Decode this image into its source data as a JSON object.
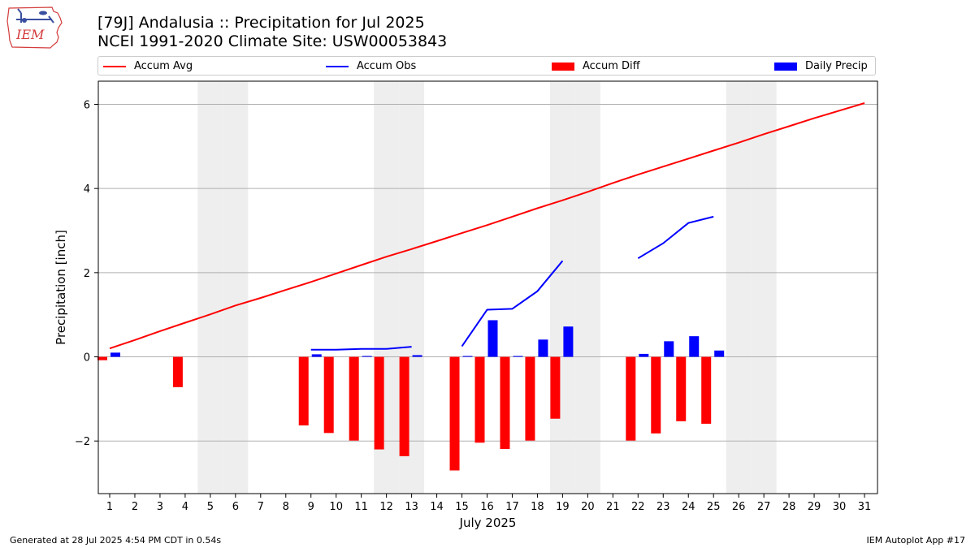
{
  "header": {
    "title_line1": "[79J] Andalusia :: Precipitation for Jul 2025",
    "title_line2": "NCEI 1991-2020 Climate Site: USW00053843",
    "logo_text": "IEM"
  },
  "footer": {
    "left": "Generated at 28 Jul 2025 4:54 PM CDT in 0.54s",
    "right": "IEM Autoplot App #17"
  },
  "colors": {
    "avg": "#ff0000",
    "obs": "#0000ff",
    "diff": "#ff0000",
    "daily": "#0000ff",
    "weekend": "#eeeeee",
    "grid": "#b0b0b0"
  },
  "chart_data": {
    "type": "bar",
    "xlabel": "July 2025",
    "ylabel": "Precipitation [inch]",
    "ylim": [
      -3.25,
      6.55
    ],
    "yticks": [
      -2,
      0,
      2,
      4,
      6
    ],
    "ytick_labels": [
      "−2",
      "0",
      "2",
      "4",
      "6"
    ],
    "grid": "horizontal",
    "legend_position": "top",
    "x": [
      1,
      2,
      3,
      4,
      5,
      6,
      7,
      8,
      9,
      10,
      11,
      12,
      13,
      14,
      15,
      16,
      17,
      18,
      19,
      20,
      21,
      22,
      23,
      24,
      25,
      26,
      27,
      28,
      29,
      30,
      31
    ],
    "weekend_days": [
      5,
      6,
      12,
      13,
      19,
      20,
      26,
      27
    ],
    "series": [
      {
        "name": "Accum Avg",
        "type": "line",
        "values": [
          0.2,
          0.4,
          0.61,
          0.81,
          1.01,
          1.22,
          1.4,
          1.59,
          1.78,
          1.98,
          2.18,
          2.38,
          2.56,
          2.75,
          2.94,
          3.13,
          3.33,
          3.53,
          3.72,
          3.92,
          4.13,
          4.33,
          4.52,
          4.71,
          4.9,
          5.09,
          5.29,
          5.48,
          5.67,
          5.85,
          6.03
        ]
      },
      {
        "name": "Accum Obs",
        "type": "line",
        "values": [
          null,
          null,
          null,
          null,
          null,
          null,
          null,
          null,
          0.17,
          0.17,
          0.19,
          0.19,
          0.24,
          null,
          0.25,
          1.12,
          1.14,
          1.56,
          2.28,
          null,
          null,
          2.34,
          2.7,
          3.18,
          3.33,
          null,
          null,
          null,
          null,
          null,
          null
        ]
      },
      {
        "name": "Accum Diff",
        "type": "bar",
        "values": [
          -0.08,
          null,
          null,
          -0.72,
          null,
          null,
          null,
          null,
          -1.63,
          -1.81,
          -1.99,
          -2.2,
          -2.36,
          null,
          -2.7,
          -2.04,
          -2.19,
          -1.99,
          -1.47,
          null,
          null,
          -1.99,
          -1.82,
          -1.53,
          -1.59,
          null,
          null,
          null,
          null,
          null,
          null
        ]
      },
      {
        "name": "Daily Precip",
        "type": "bar",
        "values": [
          0.1,
          null,
          null,
          null,
          null,
          null,
          null,
          null,
          0.06,
          null,
          0.02,
          null,
          0.04,
          null,
          0.02,
          0.87,
          0.02,
          0.41,
          0.72,
          null,
          null,
          0.07,
          0.37,
          0.49,
          0.15,
          null,
          null,
          null,
          null,
          null,
          null
        ]
      }
    ]
  }
}
